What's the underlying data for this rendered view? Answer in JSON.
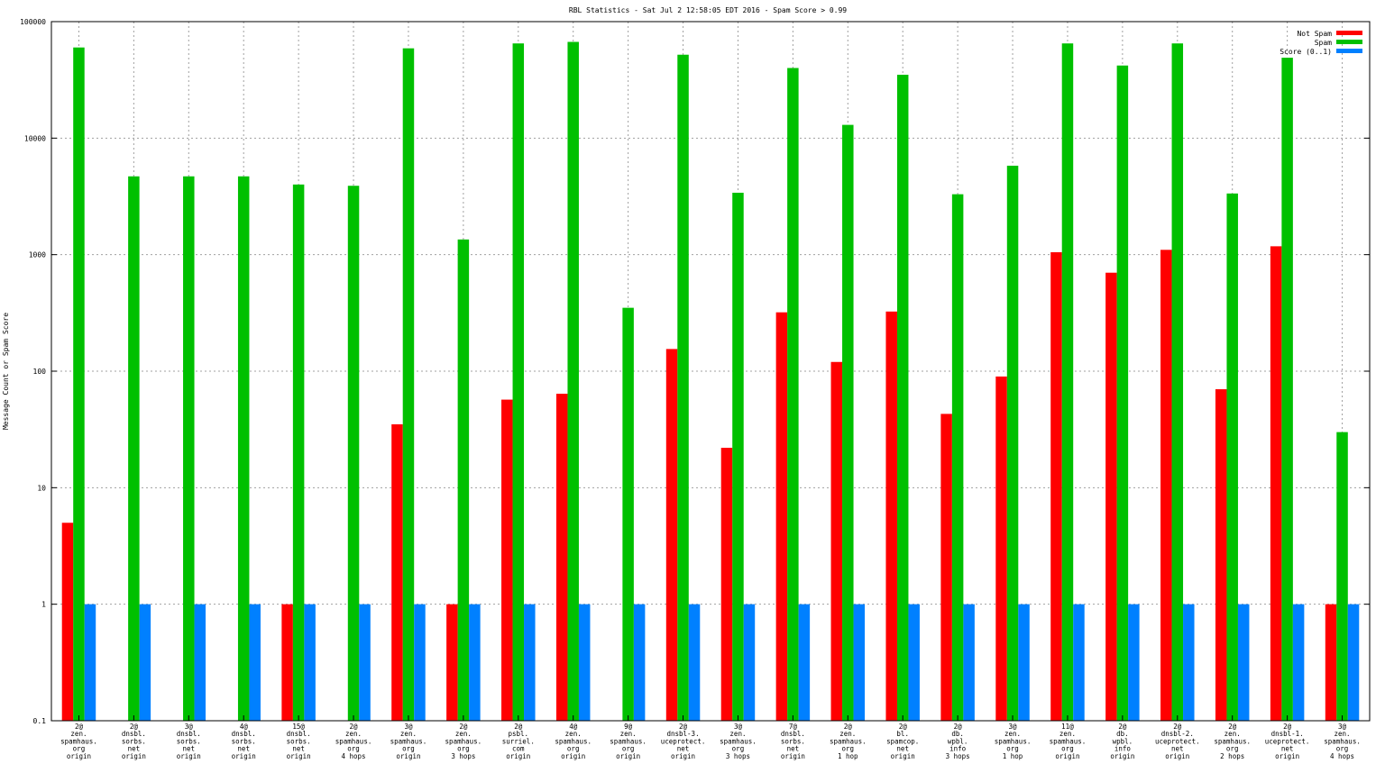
{
  "chart_data": {
    "type": "bar",
    "title": "RBL Statistics - Sat Jul  2 12:58:05 EDT 2016 - Spam Score > 0.99",
    "ylabel": "Message Count or Spam Score",
    "xlabel": "",
    "yscale": "log",
    "ylim": [
      0.1,
      100000
    ],
    "grid": true,
    "legend_position": "top-right",
    "y_tick_labels": [
      "0.1",
      "1",
      "10",
      "100",
      "1000",
      "10000",
      "100000"
    ],
    "categories": [
      [
        "2@",
        "zen.",
        "spamhaus.",
        "org",
        "origin"
      ],
      [
        "2@",
        "dnsbl.",
        "sorbs.",
        "net",
        "origin"
      ],
      [
        "3@",
        "dnsbl.",
        "sorbs.",
        "net",
        "origin"
      ],
      [
        "4@",
        "dnsbl.",
        "sorbs.",
        "net",
        "origin"
      ],
      [
        "15@",
        "dnsbl.",
        "sorbs.",
        "net",
        "origin"
      ],
      [
        "2@",
        "zen.",
        "spamhaus.",
        "org",
        "4 hops"
      ],
      [
        "3@",
        "zen.",
        "spamhaus.",
        "org",
        "origin"
      ],
      [
        "2@",
        "zen.",
        "spamhaus.",
        "org",
        "3 hops"
      ],
      [
        "2@",
        "psbl.",
        "surriel.",
        "com",
        "origin"
      ],
      [
        "4@",
        "zen.",
        "spamhaus.",
        "org",
        "origin"
      ],
      [
        "9@",
        "zen.",
        "spamhaus.",
        "org",
        "origin"
      ],
      [
        "2@",
        "dnsbl-3.",
        "uceprotect.",
        "net",
        "origin"
      ],
      [
        "3@",
        "zen.",
        "spamhaus.",
        "org",
        "3 hops"
      ],
      [
        "7@",
        "dnsbl.",
        "sorbs.",
        "net",
        "origin"
      ],
      [
        "2@",
        "zen.",
        "spamhaus.",
        "org",
        "1 hop"
      ],
      [
        "2@",
        "bl.",
        "spamcop.",
        "net",
        "origin"
      ],
      [
        "2@",
        "db.",
        "wpbl.",
        "info",
        "3 hops"
      ],
      [
        "3@",
        "zen.",
        "spamhaus.",
        "org",
        "1 hop"
      ],
      [
        "11@",
        "zen.",
        "spamhaus.",
        "org",
        "origin"
      ],
      [
        "2@",
        "db.",
        "wpbl.",
        "info",
        "origin"
      ],
      [
        "2@",
        "dnsbl-2.",
        "uceprotect.",
        "net",
        "origin"
      ],
      [
        "2@",
        "zen.",
        "spamhaus.",
        "org",
        "2 hops"
      ],
      [
        "2@",
        "dnsbl-1.",
        "uceprotect.",
        "net",
        "origin"
      ],
      [
        "3@",
        "zen.",
        "spamhaus.",
        "org",
        "4 hops"
      ]
    ],
    "series": [
      {
        "name": "Not Spam",
        "color": "#ff0000",
        "values": [
          5,
          null,
          null,
          null,
          1,
          null,
          35,
          1,
          57,
          64,
          null,
          155,
          22,
          320,
          120,
          325,
          43,
          90,
          1050,
          700,
          1100,
          70,
          1180,
          1
        ]
      },
      {
        "name": "Spam",
        "color": "#00c000",
        "values": [
          60000,
          4700,
          4700,
          4700,
          4000,
          3900,
          59000,
          1350,
          65000,
          67000,
          350,
          52000,
          3400,
          40000,
          13000,
          35000,
          3300,
          5800,
          65000,
          42000,
          65000,
          3350,
          49000,
          30
        ]
      },
      {
        "name": "Score (0..1)",
        "color": "#0080ff",
        "values": [
          1,
          1,
          1,
          1,
          1,
          1,
          1,
          1,
          1,
          1,
          1,
          1,
          1,
          1,
          1,
          1,
          1,
          1,
          1,
          1,
          1,
          1,
          1,
          1
        ]
      }
    ]
  }
}
